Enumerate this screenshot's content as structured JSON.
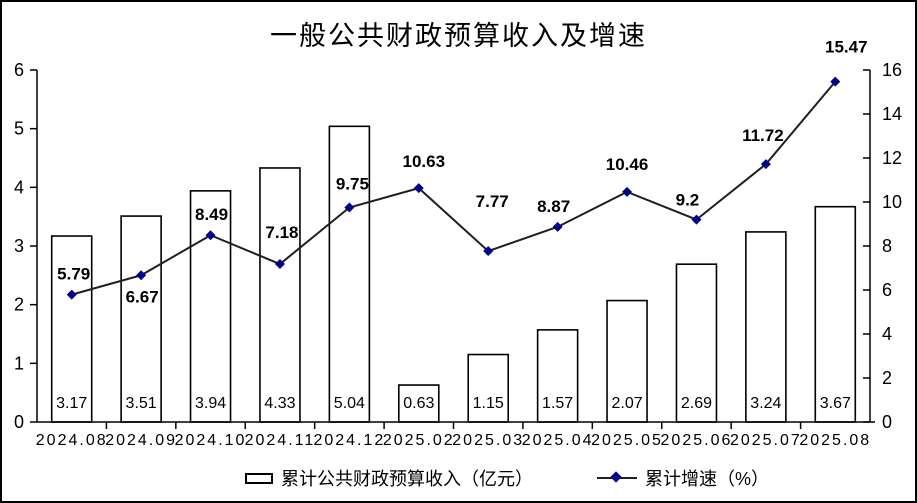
{
  "chart_data": {
    "type": "combo-bar-line",
    "title": "一般公共财政预算收入及增速",
    "categories": [
      "2024.08",
      "2024.09",
      "2024.10",
      "2024.11",
      "2024.12",
      "2025.02",
      "2025.03",
      "2025.04",
      "2025.05",
      "2025.06",
      "2025.07",
      "2025.08"
    ],
    "series": [
      {
        "name": "累计公共财政预算收入（亿元）",
        "type": "bar",
        "axis": "left",
        "values": [
          3.17,
          3.51,
          3.94,
          4.33,
          5.04,
          0.63,
          1.15,
          1.57,
          2.07,
          2.69,
          3.24,
          3.67
        ]
      },
      {
        "name": "累计增速（%）",
        "type": "line",
        "axis": "right",
        "values": [
          5.79,
          6.67,
          8.49,
          7.18,
          9.75,
          10.63,
          7.77,
          8.87,
          10.46,
          9.2,
          11.72,
          15.47
        ],
        "label_dx": [
          2,
          1,
          1,
          2,
          3,
          5,
          4,
          -4,
          0,
          -9,
          -3,
          11
        ],
        "label_dy": [
          -21,
          21,
          -21,
          -32,
          -24,
          -27,
          -50,
          -21,
          -28,
          -20,
          -29,
          -35
        ]
      }
    ],
    "left_axis": {
      "min": 0,
      "max": 6,
      "step": 1,
      "ticks": [
        "0",
        "1",
        "2",
        "3",
        "4",
        "5",
        "6"
      ]
    },
    "right_axis": {
      "min": 0,
      "max": 16,
      "step": 2,
      "ticks": [
        "0",
        "2",
        "4",
        "6",
        "8",
        "10",
        "12",
        "14",
        "16"
      ]
    },
    "grid": false,
    "legend_position": "bottom",
    "bar_labels_position": "inside-bottom",
    "colors": {
      "background": "#ffffff",
      "bar_fill": "#ffffff",
      "bar_border": "#000000",
      "line": "#1f1f1f",
      "marker": "#00008b",
      "text": "#000000"
    }
  },
  "legend": {
    "items": [
      {
        "label": "累计公共财政预算收入（亿元）",
        "swatch": "bar"
      },
      {
        "label": "累计增速（%）",
        "swatch": "line-diamond"
      }
    ]
  }
}
